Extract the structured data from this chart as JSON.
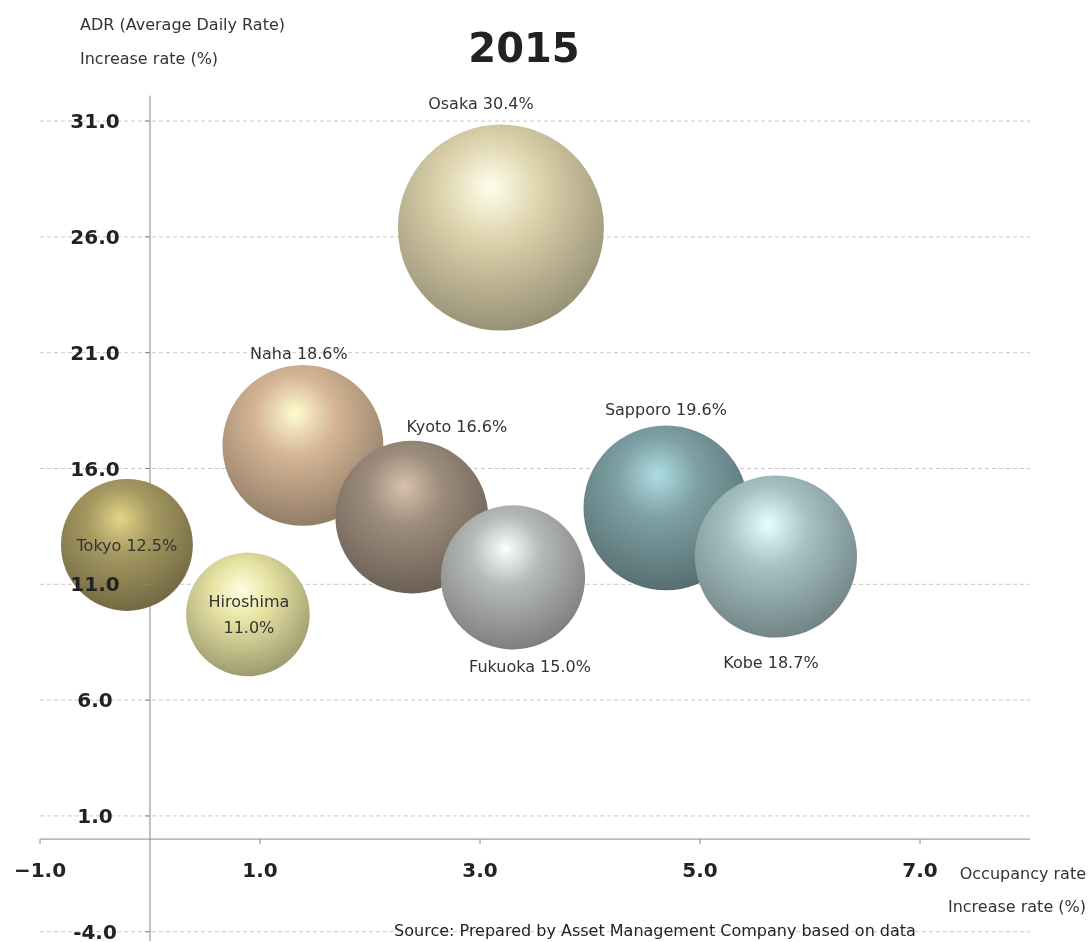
{
  "chart_data": {
    "type": "bubble",
    "title": "2015",
    "xlabel": "Occupancy rate\nIncrease rate (%)",
    "ylabel": "ADR (Average Daily Rate)\nIncrease rate (%)",
    "xlim": [
      -1,
      8
    ],
    "ylim": [
      -4.4,
      32.1
    ],
    "xticks": [
      {
        "value": -1,
        "label": "−1.0"
      },
      {
        "value": 1,
        "label": "1.0"
      },
      {
        "value": 3,
        "label": "3.0"
      },
      {
        "value": 5,
        "label": "5.0"
      },
      {
        "value": 7,
        "label": "7.0"
      }
    ],
    "yticks": [
      {
        "value": -4,
        "label": "-4.0"
      },
      {
        "value": 1,
        "label": "1.0"
      },
      {
        "value": 6,
        "label": "6.0"
      },
      {
        "value": 11,
        "label": "11.0"
      },
      {
        "value": 16,
        "label": "16.0"
      },
      {
        "value": 21,
        "label": "21.0"
      },
      {
        "value": 26,
        "label": "26.0"
      },
      {
        "value": 31,
        "label": "31.0"
      }
    ],
    "grid": "y",
    "series": [
      {
        "x": [
          3.19,
          1.39,
          2.38,
          -0.21,
          0.89,
          3.3,
          4.69,
          5.69
        ],
        "values": [
          26.4,
          17.0,
          13.9,
          12.7,
          9.7,
          11.3,
          14.3,
          12.2
        ],
        "sizes": [
          1,
          0.61,
          0.55,
          0.41,
          0.36,
          0.49,
          0.64,
          0.62
        ],
        "colors": [
          "#ddd3ac",
          "#d6b696",
          "#9c8c7c",
          "#a69a62",
          "#e6e2a2",
          "#b6bab6",
          "#7ea0a4",
          "#a6c2c4"
        ],
        "value_labels": [
          "Osaka 30.4%",
          "Naha 18.6%",
          "Kyoto 16.6%",
          "Tokyo 12.5%",
          "Hiroshima\n11.0%",
          "Fukuoka 15.0%",
          "Sapporo 19.6%",
          "Kobe 18.7%"
        ]
      }
    ],
    "annotations": [
      "Source:  Prepared by Asset Management Company based on data"
    ]
  }
}
